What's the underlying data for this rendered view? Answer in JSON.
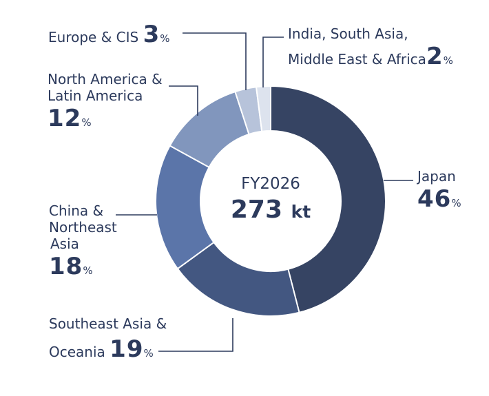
{
  "chart_data": {
    "type": "pie",
    "center_title": "FY2026",
    "center_value": "273",
    "center_unit": "kt",
    "percent_sign": "%",
    "slices": [
      {
        "key": "japan",
        "lines": [
          "Japan"
        ],
        "value": 46,
        "color": "#364463"
      },
      {
        "key": "southeast-asia",
        "lines": [
          "Southeast Asia &",
          "Oceania"
        ],
        "value": 19,
        "color": "#435781"
      },
      {
        "key": "china",
        "lines": [
          "China &",
          "Northeast",
          "Asia"
        ],
        "value": 18,
        "color": "#5b75a9"
      },
      {
        "key": "north-america",
        "lines": [
          "North America &",
          "Latin America"
        ],
        "value": 12,
        "color": "#8196bd"
      },
      {
        "key": "europe",
        "lines": [
          "Europe & CIS"
        ],
        "value": 3,
        "color": "#b7c3da"
      },
      {
        "key": "india",
        "lines": [
          "India, South Asia,",
          "Middle East & Africa"
        ],
        "value": 2,
        "color": "#dde3ee"
      }
    ]
  }
}
